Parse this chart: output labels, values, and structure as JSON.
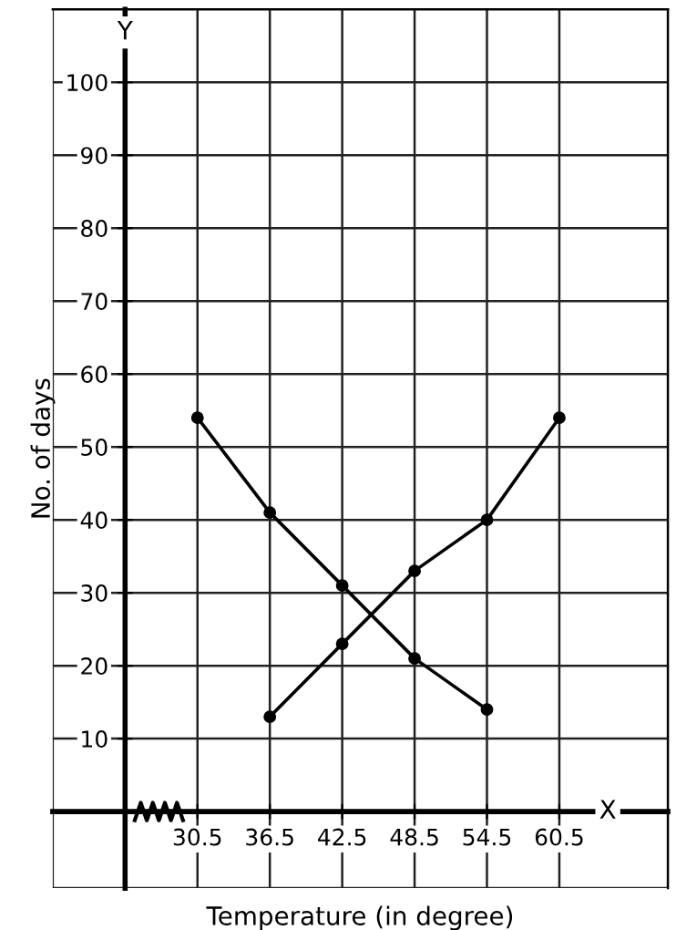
{
  "chart_data": {
    "type": "line",
    "xlabel": "Temperature (in degree)",
    "ylabel": "No. of days",
    "xlim": [
      18.5,
      69.5
    ],
    "ylim": [
      -10.5,
      110
    ],
    "xticks": [
      30.5,
      36.5,
      42.5,
      48.5,
      54.5,
      60.5
    ],
    "yticks": [
      10,
      20,
      30,
      40,
      50,
      60,
      70,
      80,
      90,
      100
    ],
    "grid": true,
    "marker": "circle",
    "line_style": "solid",
    "annotations": [
      "X",
      "Y"
    ],
    "series": [
      {
        "color": "#000000",
        "x": [
          30.5,
          36.5,
          42.5,
          48.5,
          54.5
        ],
        "values": [
          54,
          41,
          31,
          21,
          14
        ]
      },
      {
        "color": "#000000",
        "x": [
          36.5,
          42.5,
          48.5,
          54.5,
          60.5
        ],
        "values": [
          13,
          23,
          33,
          40,
          54
        ]
      }
    ]
  }
}
